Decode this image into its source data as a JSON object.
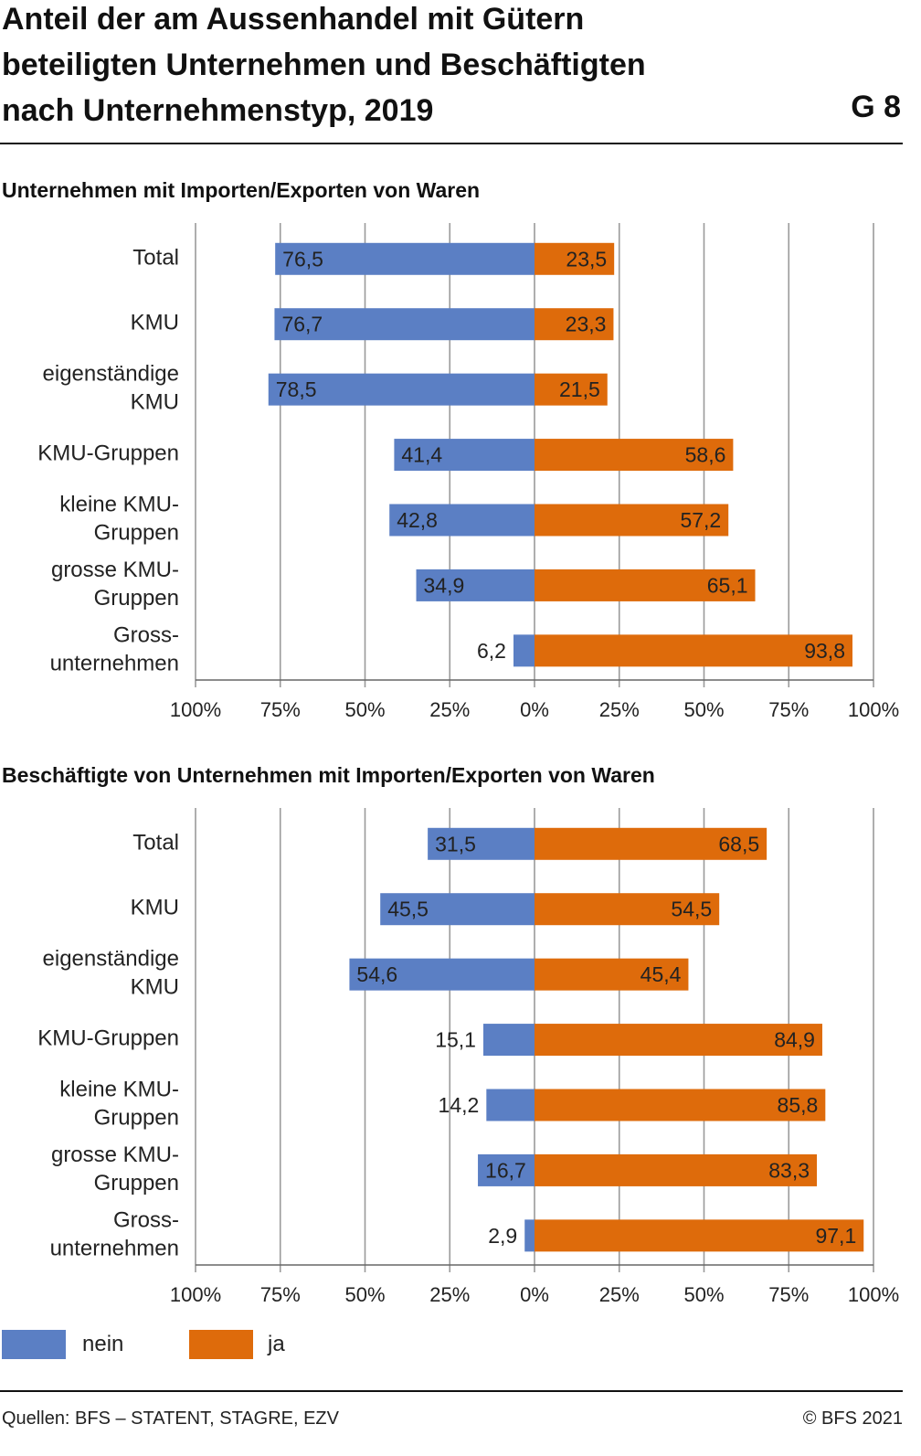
{
  "header": {
    "title_lines": [
      "Anteil der am Aussenhandel mit Gütern",
      "beteiligten Unternehmen und Beschäftigten",
      "nach Unternehmenstyp, 2019"
    ],
    "graphic_number": "G 8"
  },
  "legend": {
    "items": [
      {
        "label": "nein",
        "color": "#5b7fc4"
      },
      {
        "label": "ja",
        "color": "#de6b0b"
      }
    ]
  },
  "footer": {
    "source": "Quellen: BFS – STATENT, STAGRE, EZV",
    "copyright": "© BFS 2021"
  },
  "chart_data": [
    {
      "type": "bar",
      "orientation": "horizontal-diverging",
      "title": "Unternehmen mit Importen/Exporten von Waren",
      "categories": [
        [
          "Total"
        ],
        [
          "KMU"
        ],
        [
          "eigenständige",
          "KMU"
        ],
        [
          "KMU-Gruppen"
        ],
        [
          "kleine KMU-",
          "Gruppen"
        ],
        [
          "grosse KMU-",
          "Gruppen"
        ],
        [
          "Gross-",
          "unternehmen"
        ]
      ],
      "series": [
        {
          "name": "nein",
          "color": "#5b7fc4",
          "side": "left",
          "values": [
            76.5,
            76.7,
            78.5,
            41.4,
            42.8,
            34.9,
            6.2
          ],
          "labels": [
            "76,5",
            "76,7",
            "78,5",
            "41,4",
            "42,8",
            "34,9",
            "6,2"
          ]
        },
        {
          "name": "ja",
          "color": "#de6b0b",
          "side": "right",
          "values": [
            23.5,
            23.3,
            21.5,
            58.6,
            57.2,
            65.1,
            93.8
          ],
          "labels": [
            "23,5",
            "23,3",
            "21,5",
            "58,6",
            "57,2",
            "65,1",
            "93,8"
          ]
        }
      ],
      "xlim": [
        -100,
        100
      ],
      "xticks": [
        -100,
        -75,
        -50,
        -25,
        0,
        25,
        50,
        75,
        100
      ],
      "xtick_labels": [
        "100%",
        "75%",
        "50%",
        "25%",
        "0%",
        "25%",
        "50%",
        "75%",
        "100%"
      ],
      "grid": true
    },
    {
      "type": "bar",
      "orientation": "horizontal-diverging",
      "title": "Beschäftigte von Unternehmen mit Importen/Exporten von Waren",
      "categories": [
        [
          "Total"
        ],
        [
          "KMU"
        ],
        [
          "eigenständige",
          "KMU"
        ],
        [
          "KMU-Gruppen"
        ],
        [
          "kleine KMU-",
          "Gruppen"
        ],
        [
          "grosse KMU-",
          "Gruppen"
        ],
        [
          "Gross-",
          "unternehmen"
        ]
      ],
      "series": [
        {
          "name": "nein",
          "color": "#5b7fc4",
          "side": "left",
          "values": [
            31.5,
            45.5,
            54.6,
            15.1,
            14.2,
            16.7,
            2.9
          ],
          "labels": [
            "31,5",
            "45,5",
            "54,6",
            "15,1",
            "14,2",
            "16,7",
            "2,9"
          ]
        },
        {
          "name": "ja",
          "color": "#de6b0b",
          "side": "right",
          "values": [
            68.5,
            54.5,
            45.4,
            84.9,
            85.8,
            83.3,
            97.1
          ],
          "labels": [
            "68,5",
            "54,5",
            "45,4",
            "84,9",
            "85,8",
            "83,3",
            "97,1"
          ]
        }
      ],
      "xlim": [
        -100,
        100
      ],
      "xticks": [
        -100,
        -75,
        -50,
        -25,
        0,
        25,
        50,
        75,
        100
      ],
      "xtick_labels": [
        "100%",
        "75%",
        "50%",
        "25%",
        "0%",
        "25%",
        "50%",
        "75%",
        "100%"
      ],
      "grid": true
    }
  ]
}
